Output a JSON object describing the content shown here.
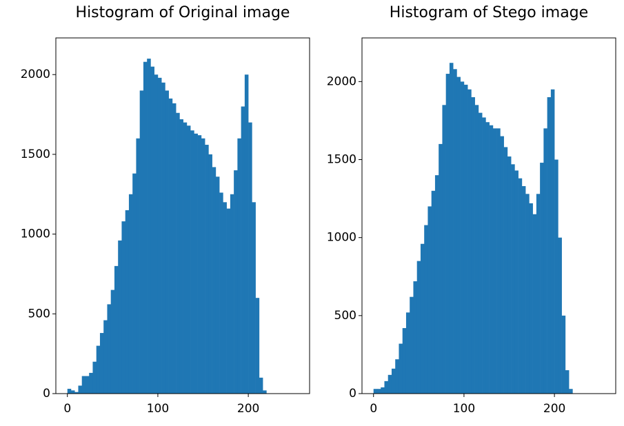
{
  "chart_data": [
    {
      "type": "histogram",
      "title": "Histogram of Original image",
      "color": "#1f77b4",
      "bins": [
        0,
        4,
        8,
        12,
        16,
        20,
        24,
        28,
        32,
        36,
        40,
        44,
        48,
        52,
        56,
        60,
        64,
        68,
        72,
        76,
        80,
        84,
        88,
        92,
        96,
        100,
        104,
        108,
        112,
        116,
        120,
        124,
        128,
        132,
        136,
        140,
        144,
        148,
        152,
        156,
        160,
        164,
        168,
        172,
        176,
        180,
        184,
        188,
        192,
        196,
        200,
        204,
        208,
        212,
        216,
        220,
        224,
        228,
        232,
        236,
        240,
        244,
        248,
        252,
        256
      ],
      "values": [
        30,
        20,
        10,
        50,
        110,
        110,
        130,
        200,
        300,
        380,
        460,
        560,
        650,
        800,
        960,
        1080,
        1150,
        1250,
        1380,
        1600,
        1900,
        2080,
        2100,
        2050,
        2000,
        1980,
        1950,
        1900,
        1850,
        1820,
        1760,
        1720,
        1700,
        1680,
        1650,
        1630,
        1620,
        1600,
        1560,
        1500,
        1420,
        1360,
        1260,
        1200,
        1160,
        1250,
        1400,
        1600,
        1800,
        2000,
        1700,
        1200,
        600,
        100,
        20,
        0,
        0,
        0,
        0,
        0,
        0,
        0,
        0,
        0
      ],
      "xlim": [
        -12.75,
        267.75
      ],
      "xticks": [
        0,
        100,
        200
      ],
      "ylim": [
        0,
        2230
      ],
      "yticks": [
        0,
        500,
        1000,
        1500,
        2000
      ]
    },
    {
      "type": "histogram",
      "title": "Histogram of Stego image",
      "color": "#1f77b4",
      "bins": [
        0,
        4,
        8,
        12,
        16,
        20,
        24,
        28,
        32,
        36,
        40,
        44,
        48,
        52,
        56,
        60,
        64,
        68,
        72,
        76,
        80,
        84,
        88,
        92,
        96,
        100,
        104,
        108,
        112,
        116,
        120,
        124,
        128,
        132,
        136,
        140,
        144,
        148,
        152,
        156,
        160,
        164,
        168,
        172,
        176,
        180,
        184,
        188,
        192,
        196,
        200,
        204,
        208,
        212,
        216,
        220,
        224,
        228,
        232,
        236,
        240,
        244,
        248,
        252,
        256
      ],
      "values": [
        30,
        30,
        40,
        80,
        120,
        160,
        220,
        320,
        420,
        520,
        620,
        720,
        850,
        960,
        1080,
        1200,
        1300,
        1400,
        1600,
        1850,
        2050,
        2120,
        2080,
        2030,
        2000,
        1980,
        1950,
        1900,
        1850,
        1800,
        1770,
        1740,
        1720,
        1700,
        1700,
        1650,
        1580,
        1520,
        1470,
        1430,
        1380,
        1330,
        1280,
        1220,
        1150,
        1280,
        1480,
        1700,
        1900,
        1950,
        1500,
        1000,
        500,
        150,
        30,
        0,
        0,
        0,
        0,
        0,
        0,
        0,
        0,
        0
      ],
      "xlim": [
        -12.75,
        267.75
      ],
      "xticks": [
        0,
        100,
        200
      ],
      "ylim": [
        0,
        2280
      ],
      "yticks": [
        0,
        500,
        1000,
        1500,
        2000
      ]
    }
  ]
}
